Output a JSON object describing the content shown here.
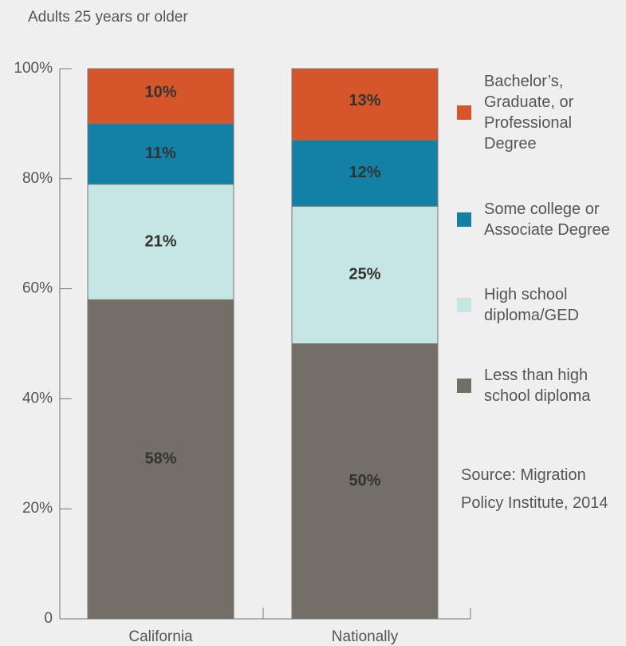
{
  "chart_data": {
    "type": "stacked_bar",
    "subtitle": "Adults 25 years or older",
    "categories": [
      "California",
      "Nationally"
    ],
    "series": [
      {
        "name": "Less than high school diploma",
        "color": "#736f66",
        "values": [
          58,
          50
        ],
        "value_labels": [
          "58%",
          "50%"
        ]
      },
      {
        "name": "High school diploma/GED",
        "color": "#c5e6e3",
        "values": [
          21,
          25
        ],
        "value_labels": [
          "21%",
          "25%"
        ]
      },
      {
        "name": "Some college or Associate Degree",
        "color": "#1380a6",
        "values": [
          11,
          12
        ],
        "value_labels": [
          "11%",
          "12%"
        ]
      },
      {
        "name": "Bachelor’s, Graduate, or Professional Degree",
        "color": "#d4562a",
        "values": [
          10,
          13
        ],
        "value_labels": [
          "10%",
          "13%"
        ]
      }
    ],
    "ylim": [
      0,
      100
    ],
    "yticks": [
      0,
      {
        "value": 20,
        "label": "20%"
      },
      {
        "value": 40,
        "label": "40%"
      },
      {
        "value": 60,
        "label": "60%"
      },
      {
        "value": 80,
        "label": "80%"
      },
      {
        "value": 100,
        "label": "100%"
      }
    ],
    "source": "Source: Migration Policy Institute, 2014"
  }
}
